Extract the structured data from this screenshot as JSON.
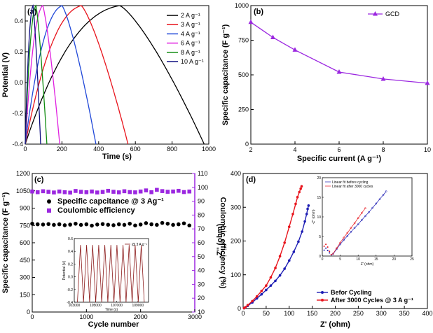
{
  "chart_data": [
    {
      "id": "a",
      "type": "line",
      "panel_label": "(a)",
      "xlabel": "Time (s)",
      "ylabel": "Potential (V)",
      "xlim": [
        0,
        1000
      ],
      "ylim": [
        -0.4,
        0.5
      ],
      "xticks": [
        "0",
        "200",
        "400",
        "600",
        "800",
        "1000"
      ],
      "yticks": [
        "-0.4",
        "-0.2",
        "0.0",
        "0.2",
        "0.4"
      ],
      "series": [
        {
          "name": "2 A g⁻¹",
          "color": "#000000",
          "t_charge": 515,
          "t_end": 975
        },
        {
          "name": "3 A g⁻¹",
          "color": "#e8141c",
          "t_charge": 305,
          "t_end": 560
        },
        {
          "name": "4 A g⁻¹",
          "color": "#2048d8",
          "t_charge": 200,
          "t_end": 385
        },
        {
          "name": "6 A g⁻¹",
          "color": "#e020e0",
          "t_charge": 95,
          "t_end": 188
        },
        {
          "name": "8 A g⁻¹",
          "color": "#108c10",
          "t_charge": 58,
          "t_end": 118
        },
        {
          "name": "10 A g⁻¹",
          "color": "#101080",
          "t_charge": 42,
          "t_end": 84
        }
      ]
    },
    {
      "id": "b",
      "type": "line",
      "panel_label": "(b)",
      "xlabel": "Specific current (A g⁻¹)",
      "ylabel": "Specific capacitance (F g⁻¹)",
      "xlim": [
        2,
        10
      ],
      "ylim": [
        0,
        1000
      ],
      "xticks": [
        "2",
        "4",
        "6",
        "8",
        "10"
      ],
      "yticks": [
        "0",
        "250",
        "500",
        "750",
        "1000"
      ],
      "series": [
        {
          "name": "GCD",
          "color": "#9b27e0",
          "x": [
            2,
            3,
            4,
            6,
            8,
            10
          ],
          "y": [
            880,
            770,
            680,
            520,
            470,
            440
          ]
        }
      ]
    },
    {
      "id": "c",
      "type": "scatter",
      "panel_label": "(c)",
      "xlabel": "Cycle number",
      "ylabel": "Specific capacitance (F g⁻¹)",
      "y2label": "Coulombic efficiency (%)",
      "xlim": [
        0,
        3000
      ],
      "ylim": [
        0,
        1200
      ],
      "y2lim": [
        10,
        110
      ],
      "xticks": [
        "0",
        "1000",
        "2000",
        "3000"
      ],
      "yticks": [
        "0",
        "150",
        "300",
        "450",
        "600",
        "750",
        "900",
        "1050",
        "1200"
      ],
      "y2ticks": [
        "10",
        "20",
        "30",
        "40",
        "50",
        "60",
        "70",
        "80",
        "90",
        "100",
        "110"
      ],
      "series": [
        {
          "name": "Specific capcitance @ 3 Ag⁻¹",
          "color": "#000000",
          "axis": "left",
          "x": [
            0,
            100,
            200,
            300,
            400,
            500,
            600,
            700,
            800,
            900,
            1000,
            1100,
            1200,
            1300,
            1400,
            1500,
            1600,
            1700,
            1800,
            1900,
            2000,
            2100,
            2200,
            2300,
            2400,
            2500,
            2600,
            2700,
            2800,
            2900
          ],
          "y": [
            765,
            760,
            758,
            762,
            755,
            760,
            752,
            757,
            765,
            755,
            760,
            748,
            758,
            762,
            756,
            752,
            760,
            755,
            765,
            750,
            758,
            770,
            760,
            755,
            772,
            765,
            755,
            760,
            768,
            750
          ]
        },
        {
          "name": "Coulombic efficiency",
          "color": "#9b27e0",
          "axis": "right",
          "x": [
            0,
            100,
            200,
            300,
            400,
            500,
            600,
            700,
            800,
            900,
            1000,
            1100,
            1200,
            1300,
            1400,
            1500,
            1600,
            1700,
            1800,
            1900,
            2000,
            2100,
            2200,
            2300,
            2400,
            2500,
            2600,
            2700,
            2800,
            2900
          ],
          "y": [
            97,
            96.5,
            97.2,
            96.8,
            96.3,
            97,
            96.5,
            96.2,
            97.4,
            96.8,
            96.5,
            97,
            96.3,
            96.7,
            97.5,
            96.8,
            96.4,
            97.2,
            96.6,
            96.4,
            97,
            97.8,
            96.5,
            98.2,
            97.3,
            96.8,
            97,
            97.5,
            96.6,
            97
          ]
        }
      ],
      "inset": {
        "legend": "@ 3 A g⁻¹",
        "xlabel": "Time (s)",
        "ylabel": "Potential (V)",
        "xlim": [
          103000,
          110000
        ],
        "ylim": [
          -0.4,
          0.6
        ],
        "xticks": [
          "103000",
          "105000",
          "107000",
          "109000"
        ],
        "yticks": [
          "-0.4",
          "-0.2",
          "0.0",
          "0.2",
          "0.4",
          "0.6"
        ],
        "cycles": 11,
        "vmin": -0.4,
        "vmax": 0.5
      }
    },
    {
      "id": "d",
      "type": "line",
      "panel_label": "(d)",
      "xlabel": "Z' (ohm)",
      "ylabel": "-Z'' (ohm)",
      "xlim": [
        0,
        400
      ],
      "ylim": [
        0,
        400
      ],
      "xticks": [
        "0",
        "50",
        "100",
        "150",
        "200",
        "250",
        "300",
        "350",
        "400"
      ],
      "yticks": [
        "0",
        "100",
        "200",
        "300",
        "400"
      ],
      "series": [
        {
          "name": "Befor Cycling",
          "color": "#1e1eb4",
          "x": [
            2,
            5,
            10,
            20,
            30,
            40,
            50,
            60,
            70,
            80,
            90,
            100,
            110,
            120,
            128,
            134,
            138,
            140,
            142
          ],
          "y": [
            1,
            3,
            8,
            18,
            30,
            42,
            55,
            68,
            82,
            98,
            118,
            142,
            168,
            198,
            228,
            258,
            280,
            295,
            305
          ]
        },
        {
          "name": "After 3000 Cycles @ 3 A g⁻¹",
          "color": "#e8141c",
          "x": [
            2,
            5,
            10,
            20,
            30,
            40,
            50,
            60,
            70,
            80,
            90,
            100,
            108,
            114,
            118,
            122,
            125,
            127
          ],
          "y": [
            1,
            4,
            10,
            22,
            36,
            52,
            68,
            92,
            120,
            155,
            195,
            242,
            280,
            310,
            330,
            345,
            355,
            362
          ]
        }
      ],
      "inset": {
        "xlabel": "Z' (ohm)",
        "ylabel": "-Z'' (ohm)",
        "xlim": [
          0,
          25
        ],
        "ylim": [
          0,
          20
        ],
        "xticks": [
          "0",
          "5",
          "10",
          "15",
          "20",
          "25"
        ],
        "yticks": [
          "0",
          "5",
          "10",
          "15",
          "20"
        ],
        "series": [
          {
            "name": "Linear fit before cycling",
            "color": "#1e1eb4",
            "x": [
              0.5,
              1,
              1.5,
              2,
              2.5,
              3,
              4,
              5,
              6,
              7,
              8,
              9,
              10,
              11,
              12,
              13,
              14,
              15,
              16,
              17,
              17.8
            ],
            "y": [
              1.5,
              2,
              1.4,
              0.8,
              0.3,
              0.5,
              1.8,
              3,
              4.1,
              5.1,
              6.2,
              7.2,
              8.1,
              9.2,
              10.2,
              11.2,
              12.3,
              13.4,
              14.5,
              15.6,
              16.5
            ]
          },
          {
            "name": "Linear fit after 3000 cycles",
            "color": "#e8141c",
            "x": [
              0.5,
              1,
              1.5,
              2,
              2.5,
              3,
              4,
              5,
              6,
              7,
              8,
              9,
              10,
              11,
              12
            ],
            "y": [
              2.5,
              3,
              2.3,
              1.2,
              0.4,
              0.6,
              2,
              3.4,
              4.7,
              5.9,
              7.2,
              8.4,
              9.7,
              11,
              12.2
            ]
          }
        ]
      }
    }
  ]
}
